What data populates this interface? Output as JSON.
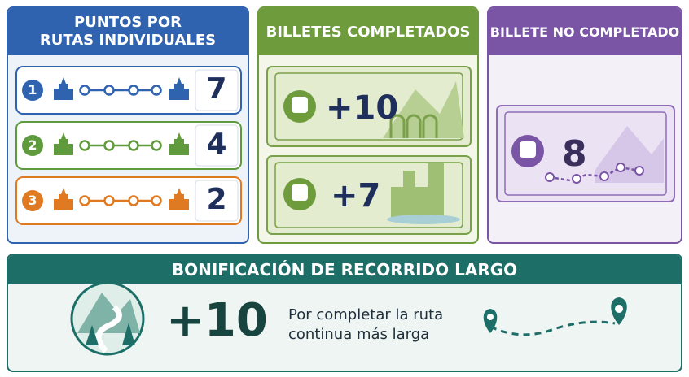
{
  "routes_panel": {
    "title_lines": [
      "PUNTOS POR",
      "RUTAS INDIVIDUALES"
    ],
    "rows": [
      {
        "number": "1",
        "points": "7"
      },
      {
        "number": "2",
        "points": "4"
      },
      {
        "number": "3",
        "points": "2"
      }
    ]
  },
  "completed_panel": {
    "title": "BILLETES COMPLETADOS",
    "tickets": [
      "+10",
      "+7"
    ]
  },
  "incomplete_panel": {
    "title": "BILLETE NO COMPLETADO",
    "ticket": "8"
  },
  "bonus_panel": {
    "title": "BONIFICACIÓN DE RECORRIDO LARGO",
    "points": "+10",
    "description_lines": [
      "Por completar la ruta",
      "continua más larga"
    ]
  }
}
